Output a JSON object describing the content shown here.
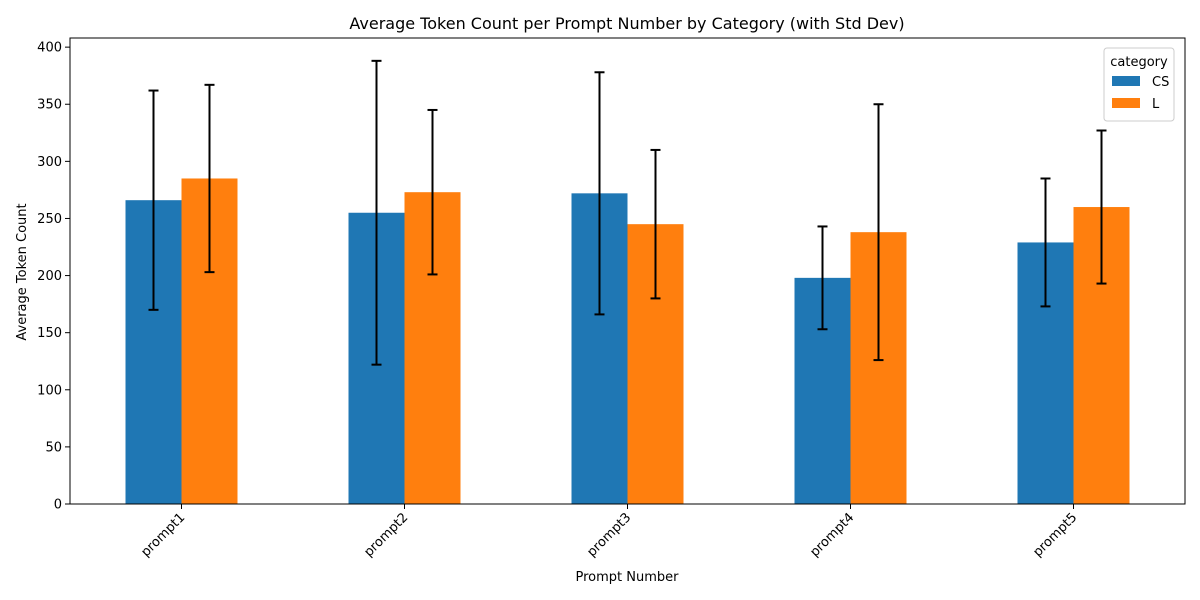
{
  "chart_data": {
    "type": "bar",
    "title": "Average Token Count per Prompt Number by Category (with Std Dev)",
    "xlabel": "Prompt Number",
    "ylabel": "Average Token Count",
    "categories": [
      "prompt1",
      "prompt2",
      "prompt3",
      "prompt4",
      "prompt5"
    ],
    "ylim": [
      0,
      408
    ],
    "yticks": [
      0,
      50,
      100,
      150,
      200,
      250,
      300,
      350,
      400
    ],
    "grid": false,
    "legend": {
      "title": "category",
      "position": "top-right"
    },
    "series": [
      {
        "name": "CS",
        "color": "#1f77b4",
        "values": [
          266,
          255,
          272,
          198,
          229
        ],
        "std": [
          96,
          133,
          106,
          45,
          56
        ]
      },
      {
        "name": "L",
        "color": "#ff7f0e",
        "values": [
          285,
          273,
          245,
          238,
          260
        ],
        "std": [
          82,
          72,
          65,
          112,
          67
        ]
      }
    ]
  }
}
